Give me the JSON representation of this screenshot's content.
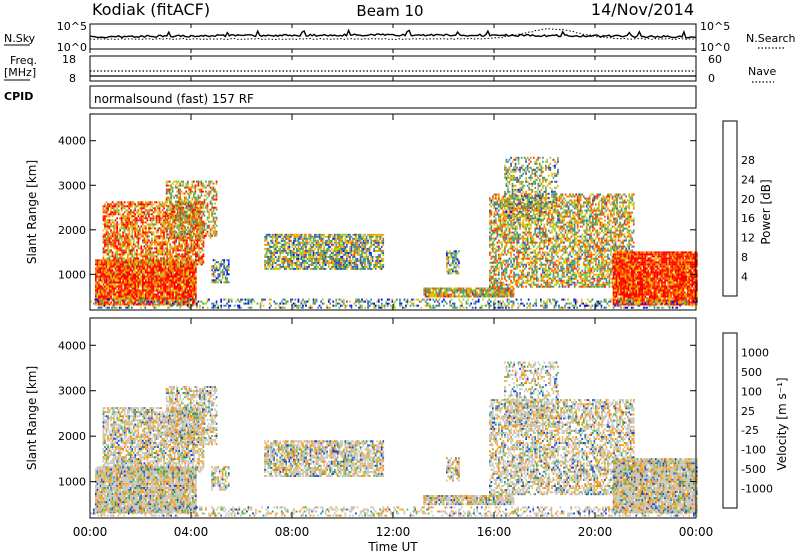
{
  "header": {
    "station": "Kodiak (fitACF)",
    "beam": "Beam 10",
    "date": "14/Nov/2014"
  },
  "panel_noise": {
    "left_label": "N.Sky",
    "left_ticks": [
      "10^5",
      "10^0"
    ],
    "right_label": "N.Search",
    "right_ticks": [
      "10^5",
      "10^0"
    ]
  },
  "panel_freq": {
    "left_label_1": "Freq.",
    "left_label_2": "[MHz]",
    "left_ticks": [
      "18",
      "8"
    ],
    "right_label": "Nave",
    "right_ticks": [
      "60",
      "0"
    ]
  },
  "panel_cpid": {
    "label": "CPID",
    "text": "normalsound (fast) 157 RF"
  },
  "chart_data": [
    {
      "type": "heatmap",
      "name": "power",
      "ylabel": "Slant Range [km]",
      "yticks": [
        "1000",
        "2000",
        "3000",
        "4000"
      ],
      "ylim": [
        200,
        4600
      ],
      "colorbar_label": "Power [dB]",
      "colorbar_ticks": [
        "4",
        "8",
        "12",
        "16",
        "20",
        "24",
        "28"
      ],
      "colors": [
        "#0000ff",
        "#2a4fc0",
        "#3f8a9a",
        "#4ea860",
        "#9acd32",
        "#f0c000",
        "#ff8a00",
        "#ff4000",
        "#ff0000"
      ]
    },
    {
      "type": "heatmap",
      "name": "velocity",
      "ylabel": "Slant Range [km]",
      "yticks": [
        "1000",
        "2000",
        "3000",
        "4000"
      ],
      "ylim": [
        200,
        4600
      ],
      "colorbar_label": "Velocity [m s⁻¹]",
      "colorbar_ticks": [
        "1000",
        "500",
        "100",
        "25",
        "-25",
        "-100",
        "-500",
        "-1000"
      ],
      "colors": [
        "#1b3fd0",
        "#2c6fc0",
        "#2f9a80",
        "#58c040",
        "#c8c8c0",
        "#f0b030",
        "#ff8a00",
        "#ff5000",
        "#ff1000"
      ]
    }
  ],
  "xaxis": {
    "label": "Time UT",
    "ticks": [
      "00:00",
      "04:00",
      "08:00",
      "12:00",
      "16:00",
      "20:00",
      "00:00"
    ],
    "range_hours": [
      0,
      24
    ]
  }
}
